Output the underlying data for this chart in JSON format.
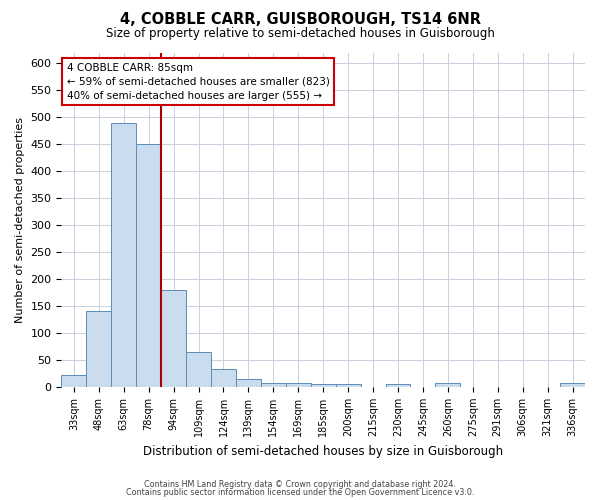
{
  "title": "4, COBBLE CARR, GUISBOROUGH, TS14 6NR",
  "subtitle": "Size of property relative to semi-detached houses in Guisborough",
  "xlabel": "Distribution of semi-detached houses by size in Guisborough",
  "ylabel": "Number of semi-detached properties",
  "footnote1": "Contains HM Land Registry data © Crown copyright and database right 2024.",
  "footnote2": "Contains public sector information licensed under the Open Government Licence v3.0.",
  "bin_labels": [
    "33sqm",
    "48sqm",
    "63sqm",
    "78sqm",
    "94sqm",
    "109sqm",
    "124sqm",
    "139sqm",
    "154sqm",
    "169sqm",
    "185sqm",
    "200sqm",
    "215sqm",
    "230sqm",
    "245sqm",
    "260sqm",
    "275sqm",
    "291sqm",
    "306sqm",
    "321sqm",
    "336sqm"
  ],
  "bin_values": [
    22,
    140,
    490,
    450,
    180,
    65,
    33,
    15,
    8,
    8,
    5,
    5,
    0,
    5,
    0,
    7,
    0,
    0,
    0,
    0,
    7
  ],
  "bar_color": "#ccdcef",
  "bar_edge_color": "#5b8db8",
  "annotation_title": "4 COBBLE CARR: 85sqm",
  "annotation_line1": "← 59% of semi-detached houses are smaller (823)",
  "annotation_line2": "40% of semi-detached houses are larger (555) →",
  "annotation_box_color": "#ffffff",
  "annotation_box_edge": "#cc0000",
  "vline_color": "#aa0000",
  "vline_pos": 3.5,
  "ylim": [
    0,
    620
  ],
  "yticks": [
    0,
    50,
    100,
    150,
    200,
    250,
    300,
    350,
    400,
    450,
    500,
    550,
    600
  ],
  "grid_color": "#c8d0dc",
  "bg_color": "#ffffff",
  "plot_bg_color": "#ffffff"
}
